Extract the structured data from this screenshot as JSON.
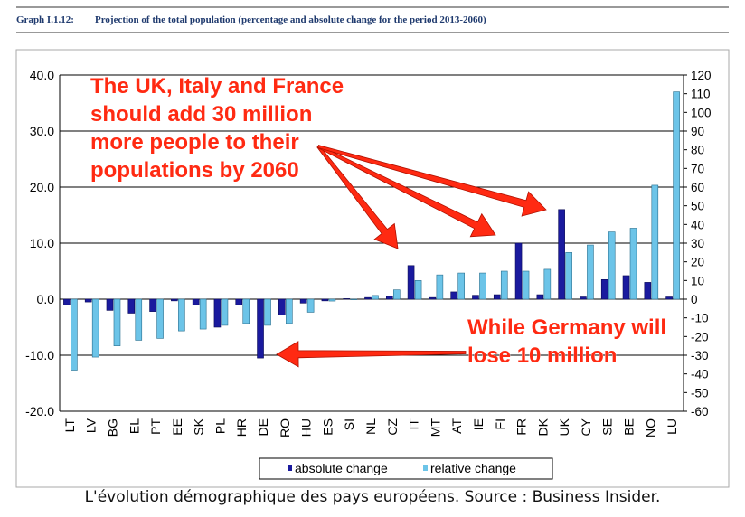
{
  "header": {
    "graph_number": "Graph I.1.12:",
    "title": "Projection of the total population (percentage and absolute change for the period 2013-2060)"
  },
  "annotations": {
    "top": [
      "The UK, Italy and France",
      "should add 30 million",
      "more people to their",
      "populations by 2060"
    ],
    "bottom": [
      "While Germany will",
      "lose 10 million"
    ]
  },
  "caption": "L'évolution démographique des pays européens. Source : Business Insider.",
  "colors": {
    "absolute": "#1a1a9e",
    "relative": "#6cc4e8",
    "annotation": "#ff2a12",
    "grid": "#000000"
  },
  "chart_data": {
    "type": "bar",
    "categories": [
      "LT",
      "LV",
      "BG",
      "EL",
      "PT",
      "EE",
      "SK",
      "PL",
      "HR",
      "DE",
      "RO",
      "HU",
      "ES",
      "SI",
      "NL",
      "CZ",
      "IT",
      "MT",
      "AT",
      "IE",
      "FI",
      "FR",
      "DK",
      "UK",
      "CY",
      "SE",
      "BE",
      "NO",
      "LU"
    ],
    "series": [
      {
        "name": "absolute change",
        "axis": "left",
        "values": [
          -1.0,
          -0.5,
          -2.0,
          -2.5,
          -2.2,
          -0.3,
          -1.0,
          -5.0,
          -1.0,
          -10.5,
          -2.8,
          -0.7,
          -0.3,
          0.1,
          0.3,
          0.5,
          6.0,
          0.3,
          1.3,
          0.7,
          0.8,
          10.0,
          0.8,
          16.0,
          0.4,
          3.5,
          4.2,
          3.0,
          0.4
        ]
      },
      {
        "name": "relative change",
        "axis": "right",
        "values": [
          -38,
          -31,
          -25,
          -22,
          -21,
          -17,
          -16,
          -14,
          -13,
          -14,
          -13,
          -7,
          -1,
          0,
          2,
          5,
          10,
          13,
          14,
          14,
          15,
          15,
          16,
          25,
          29,
          36,
          38,
          61,
          111
        ]
      }
    ],
    "ylim_left": [
      -20,
      40
    ],
    "yticks_left": [
      "40.0",
      "30.0",
      "20.0",
      "10.0",
      "0.0",
      "-10.0",
      "-20.0"
    ],
    "ylim_right": [
      -60,
      120
    ],
    "yticks_right": [
      "120",
      "110",
      "100",
      "90",
      "80",
      "70",
      "60",
      "50",
      "40",
      "30",
      "20",
      "10",
      "0",
      "-10",
      "-20",
      "-30",
      "-40",
      "-50",
      "-60"
    ],
    "grid": "horizontal",
    "legend_position": "bottom-center"
  }
}
